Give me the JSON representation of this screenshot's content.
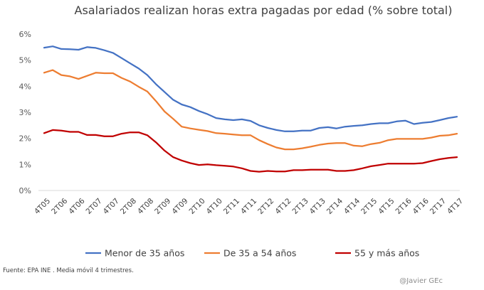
{
  "chart_data": {
    "type": "line",
    "title": "Asalariados realizan horas extra pagadas por edad (% sobre total)",
    "xlabel": "",
    "ylabel": "",
    "ylim": [
      0,
      6
    ],
    "y_ticks": [
      "0%",
      "1%",
      "2%",
      "3%",
      "4%",
      "5%",
      "6%"
    ],
    "y_tick_values": [
      0,
      1,
      2,
      3,
      4,
      5,
      6
    ],
    "x": [
      "4T05",
      "1T06",
      "2T06",
      "3T06",
      "4T06",
      "1T07",
      "2T07",
      "3T07",
      "4T07",
      "1T08",
      "2T08",
      "3T08",
      "4T08",
      "1T09",
      "2T09",
      "3T09",
      "4T09",
      "1T10",
      "2T10",
      "3T10",
      "4T10",
      "1T11",
      "2T11",
      "3T11",
      "4T11",
      "1T12",
      "2T12",
      "3T12",
      "4T12",
      "1T13",
      "2T13",
      "3T13",
      "4T13",
      "1T14",
      "2T14",
      "3T14",
      "4T14",
      "1T15",
      "2T15",
      "3T15",
      "4T15",
      "1T16",
      "2T16",
      "3T16",
      "4T16",
      "1T17",
      "2T17",
      "3T17",
      "4T17"
    ],
    "x_labels": [
      "4T05",
      "2T06",
      "4T06",
      "2T07",
      "4T07",
      "2T08",
      "4T08",
      "2T09",
      "4T09",
      "2T10",
      "4T10",
      "2T11",
      "4T11",
      "2T12",
      "4T12",
      "2T13",
      "4T13",
      "2T14",
      "4T14",
      "2T15",
      "4T15",
      "2T16",
      "4T16",
      "2T17",
      "4T17"
    ],
    "series": [
      {
        "name": "Menor de 35 años",
        "color": "#4472C4",
        "values": [
          5.48,
          5.53,
          5.43,
          5.42,
          5.4,
          5.5,
          5.47,
          5.38,
          5.28,
          5.08,
          4.88,
          4.68,
          4.43,
          4.08,
          3.78,
          3.48,
          3.3,
          3.2,
          3.05,
          2.93,
          2.78,
          2.73,
          2.7,
          2.73,
          2.67,
          2.5,
          2.4,
          2.32,
          2.27,
          2.27,
          2.3,
          2.3,
          2.4,
          2.43,
          2.38,
          2.45,
          2.48,
          2.5,
          2.55,
          2.58,
          2.58,
          2.65,
          2.68,
          2.55,
          2.6,
          2.63,
          2.7,
          2.78,
          2.83
        ]
      },
      {
        "name": "De 35 a 54 años",
        "color": "#ED7D31",
        "values": [
          4.52,
          4.62,
          4.43,
          4.38,
          4.28,
          4.4,
          4.52,
          4.5,
          4.5,
          4.32,
          4.18,
          3.98,
          3.8,
          3.43,
          3.03,
          2.75,
          2.45,
          2.38,
          2.33,
          2.28,
          2.2,
          2.18,
          2.15,
          2.12,
          2.12,
          1.93,
          1.78,
          1.65,
          1.58,
          1.58,
          1.62,
          1.68,
          1.75,
          1.8,
          1.82,
          1.82,
          1.72,
          1.7,
          1.78,
          1.83,
          1.93,
          1.98,
          1.98,
          1.98,
          1.98,
          2.03,
          2.1,
          2.12,
          2.18
        ]
      },
      {
        "name": "55 y más años",
        "color": "#C00000",
        "values": [
          2.2,
          2.32,
          2.3,
          2.25,
          2.25,
          2.13,
          2.13,
          2.08,
          2.08,
          2.18,
          2.23,
          2.23,
          2.12,
          1.85,
          1.53,
          1.28,
          1.15,
          1.05,
          0.98,
          1.0,
          0.97,
          0.95,
          0.92,
          0.85,
          0.75,
          0.72,
          0.75,
          0.73,
          0.73,
          0.78,
          0.78,
          0.8,
          0.8,
          0.8,
          0.75,
          0.75,
          0.78,
          0.85,
          0.93,
          0.98,
          1.03,
          1.03,
          1.03,
          1.03,
          1.05,
          1.13,
          1.2,
          1.25,
          1.28
        ]
      }
    ]
  },
  "footer": {
    "source": "Fuente:  EPA INE . Media móvil 4 trimestres.",
    "credit": "@Javier GEc"
  }
}
